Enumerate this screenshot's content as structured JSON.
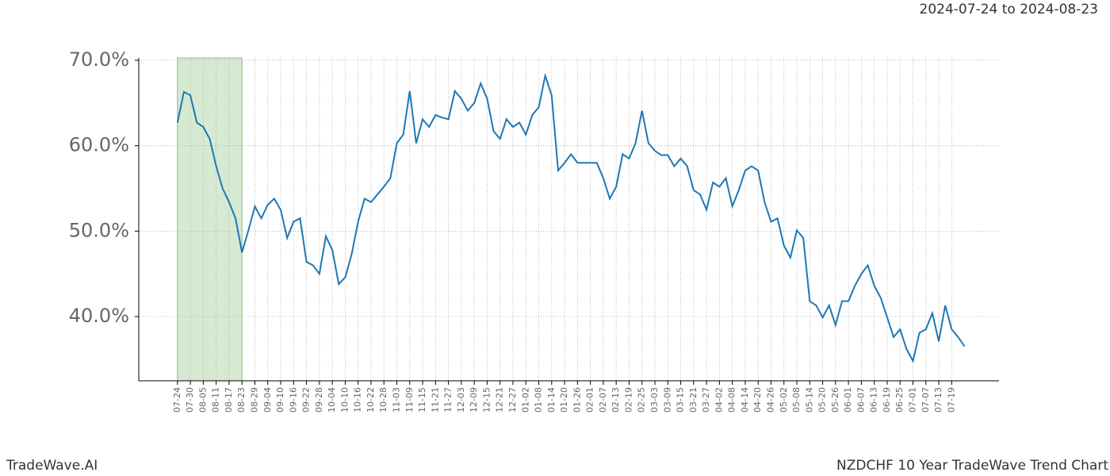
{
  "chart_data": {
    "type": "line",
    "title": "NZDCHF 10 Year TradeWave Trend Chart",
    "subtitle": "2024-07-24 to 2024-08-23",
    "brand": "TradeWave.AI",
    "color": "#1f77b4",
    "grid": true,
    "shade_x": [
      0,
      30
    ],
    "shade_color": "#d6ead2",
    "x": [
      0,
      3,
      6,
      9,
      12,
      15,
      18,
      21,
      24,
      27,
      30,
      33,
      36,
      39,
      42,
      45,
      48,
      51,
      54,
      57,
      60,
      63,
      66,
      69,
      72,
      75,
      78,
      81,
      84,
      87,
      90,
      93,
      96,
      99,
      102,
      105,
      108,
      111,
      114,
      117,
      120,
      123,
      126,
      129,
      132,
      135,
      138,
      141,
      144,
      147,
      150,
      153,
      156,
      159,
      162,
      165,
      168,
      171,
      174,
      177,
      180,
      183,
      186,
      189,
      192,
      195,
      198,
      201,
      204,
      207,
      210,
      213,
      216,
      219,
      222,
      225,
      228,
      231,
      234,
      237,
      240,
      243,
      246,
      249,
      252,
      255,
      258,
      261,
      264,
      267,
      270,
      273,
      276,
      279,
      282,
      285,
      288,
      291,
      294,
      297,
      300,
      303,
      306,
      309,
      312,
      315,
      318,
      321,
      324,
      327,
      330,
      333,
      336,
      339,
      342,
      345,
      348,
      351,
      354,
      357,
      360,
      363,
      366
    ],
    "values": [
      62.7,
      66.3,
      65.9,
      62.7,
      62.2,
      60.8,
      57.6,
      55,
      53.4,
      51.5,
      47.5,
      50.1,
      52.9,
      51.5,
      53.1,
      53.8,
      52.5,
      49.2,
      51.1,
      51.5,
      46.4,
      46,
      45,
      49.4,
      47.8,
      43.8,
      44.6,
      47.3,
      51.1,
      53.8,
      53.4,
      54.3,
      55.2,
      56.2,
      60.3,
      61.3,
      66.4,
      60.3,
      63.1,
      62.2,
      63.6,
      63.3,
      63.1,
      66.4,
      65.5,
      64.1,
      65,
      67.3,
      65.5,
      61.7,
      60.8,
      63.1,
      62.2,
      62.7,
      61.3,
      63.6,
      64.5,
      68.2,
      65.9,
      57.1,
      58,
      59,
      58,
      58,
      58,
      58,
      56.2,
      53.8,
      55.2,
      59,
      58.5,
      60.3,
      64.1,
      60.3,
      59.4,
      58.9,
      58.9,
      57.6,
      58.5,
      57.6,
      54.8,
      54.3,
      52.5,
      55.7,
      55.2,
      56.2,
      52.9,
      54.8,
      57.1,
      57.6,
      57.1,
      53.4,
      51.1,
      51.5,
      48.3,
      46.9,
      50.1,
      49.2,
      41.8,
      41.3,
      39.9,
      41.3,
      39,
      41.8,
      41.8,
      43.6,
      45,
      46,
      43.6,
      42.2,
      39.9,
      37.6,
      38.5,
      36.2,
      34.8,
      38.1,
      38.5,
      40.4,
      37.1,
      41.3,
      38.5,
      37.6,
      36.5
    ],
    "xlim": [
      -18,
      382
    ],
    "ylim": [
      32.48,
      70.28
    ],
    "yticks": [
      {
        "value": 40,
        "label": "40.0%"
      },
      {
        "value": 50,
        "label": "50.0%"
      },
      {
        "value": 60,
        "label": "60.0%"
      },
      {
        "value": 70,
        "label": "70.0%"
      }
    ],
    "xticks": [
      {
        "value": 0,
        "label": "07-24"
      },
      {
        "value": 6,
        "label": "07-30"
      },
      {
        "value": 12,
        "label": "08-05"
      },
      {
        "value": 18,
        "label": "08-11"
      },
      {
        "value": 24,
        "label": "08-17"
      },
      {
        "value": 30,
        "label": "08-23"
      },
      {
        "value": 36,
        "label": "08-29"
      },
      {
        "value": 42,
        "label": "09-04"
      },
      {
        "value": 48,
        "label": "09-10"
      },
      {
        "value": 54,
        "label": "09-16"
      },
      {
        "value": 60,
        "label": "09-22"
      },
      {
        "value": 66,
        "label": "09-28"
      },
      {
        "value": 72,
        "label": "10-04"
      },
      {
        "value": 78,
        "label": "10-10"
      },
      {
        "value": 84,
        "label": "10-16"
      },
      {
        "value": 90,
        "label": "10-22"
      },
      {
        "value": 96,
        "label": "10-28"
      },
      {
        "value": 102,
        "label": "11-03"
      },
      {
        "value": 108,
        "label": "11-09"
      },
      {
        "value": 114,
        "label": "11-15"
      },
      {
        "value": 120,
        "label": "11-21"
      },
      {
        "value": 126,
        "label": "11-27"
      },
      {
        "value": 132,
        "label": "12-03"
      },
      {
        "value": 138,
        "label": "12-09"
      },
      {
        "value": 144,
        "label": "12-15"
      },
      {
        "value": 150,
        "label": "12-21"
      },
      {
        "value": 156,
        "label": "12-27"
      },
      {
        "value": 162,
        "label": "01-02"
      },
      {
        "value": 168,
        "label": "01-08"
      },
      {
        "value": 174,
        "label": "01-14"
      },
      {
        "value": 180,
        "label": "01-20"
      },
      {
        "value": 186,
        "label": "01-26"
      },
      {
        "value": 192,
        "label": "02-01"
      },
      {
        "value": 198,
        "label": "02-07"
      },
      {
        "value": 204,
        "label": "02-13"
      },
      {
        "value": 210,
        "label": "02-19"
      },
      {
        "value": 216,
        "label": "02-25"
      },
      {
        "value": 222,
        "label": "03-03"
      },
      {
        "value": 228,
        "label": "03-09"
      },
      {
        "value": 234,
        "label": "03-15"
      },
      {
        "value": 240,
        "label": "03-21"
      },
      {
        "value": 246,
        "label": "03-27"
      },
      {
        "value": 252,
        "label": "04-02"
      },
      {
        "value": 258,
        "label": "04-08"
      },
      {
        "value": 264,
        "label": "04-14"
      },
      {
        "value": 270,
        "label": "04-20"
      },
      {
        "value": 276,
        "label": "04-26"
      },
      {
        "value": 282,
        "label": "05-02"
      },
      {
        "value": 288,
        "label": "05-08"
      },
      {
        "value": 294,
        "label": "05-14"
      },
      {
        "value": 300,
        "label": "05-20"
      },
      {
        "value": 306,
        "label": "05-26"
      },
      {
        "value": 312,
        "label": "06-01"
      },
      {
        "value": 318,
        "label": "06-07"
      },
      {
        "value": 324,
        "label": "06-13"
      },
      {
        "value": 330,
        "label": "06-19"
      },
      {
        "value": 336,
        "label": "06-25"
      },
      {
        "value": 342,
        "label": "07-01"
      },
      {
        "value": 348,
        "label": "07-07"
      },
      {
        "value": 354,
        "label": "07-13"
      },
      {
        "value": 360,
        "label": "07-19"
      }
    ]
  }
}
